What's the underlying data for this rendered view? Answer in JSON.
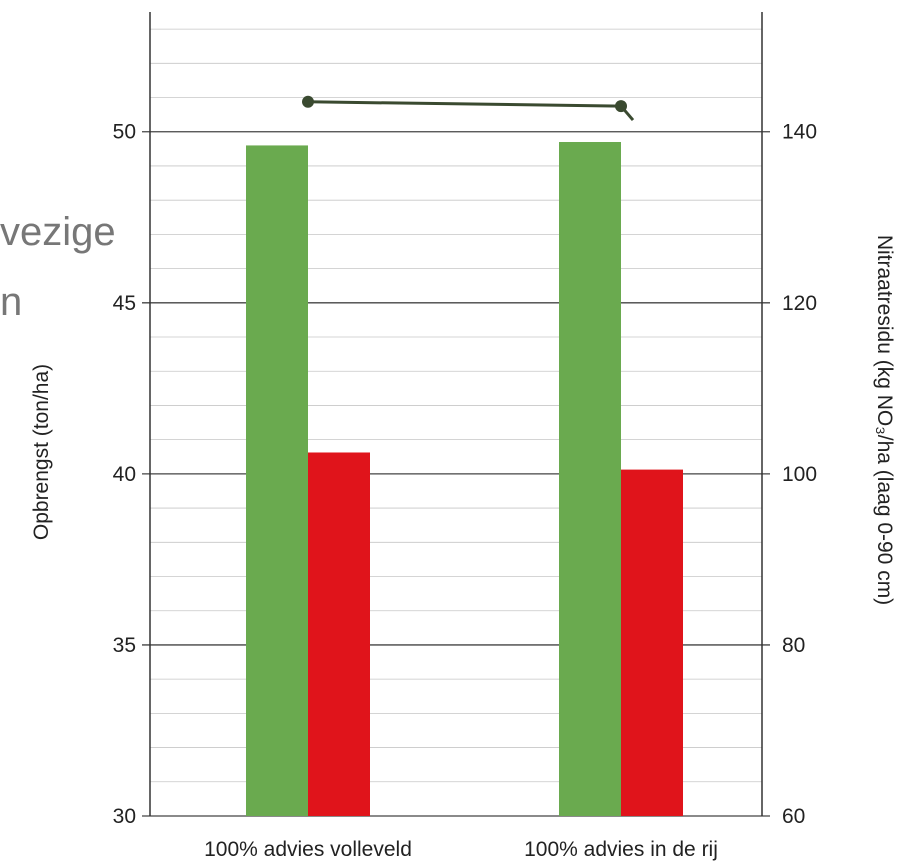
{
  "overlay_text": [
    "vezige",
    "n"
  ],
  "chart_data": {
    "type": "bar",
    "categories": [
      "100% advies volleveld",
      "100% advies in de rij"
    ],
    "series": [
      {
        "axis": "left",
        "color": "#6aaa4f",
        "values": [
          49.6,
          49.7
        ]
      },
      {
        "axis": "right",
        "color": "#e0141b",
        "values": [
          102.5,
          100.5
        ]
      },
      {
        "type": "line",
        "axis": "right",
        "color": "#3a4a30",
        "values": [
          143.5,
          143
        ]
      }
    ],
    "ylabel": "Opbrengst (ton/ha)",
    "y2label": "Nitraatresidu (kg NO₃/ha (laag 0-90 cm)",
    "ylim": [
      30,
      53.5
    ],
    "y2lim": [
      60,
      154
    ],
    "yticks": [
      30,
      35,
      40,
      45,
      50
    ],
    "y2ticks": [
      60,
      80,
      100,
      120,
      140
    ],
    "grid": true,
    "colors": {
      "green": "#6aaa4f",
      "red": "#e0141b",
      "line": "#3a4a30",
      "grid": "#999999"
    }
  }
}
